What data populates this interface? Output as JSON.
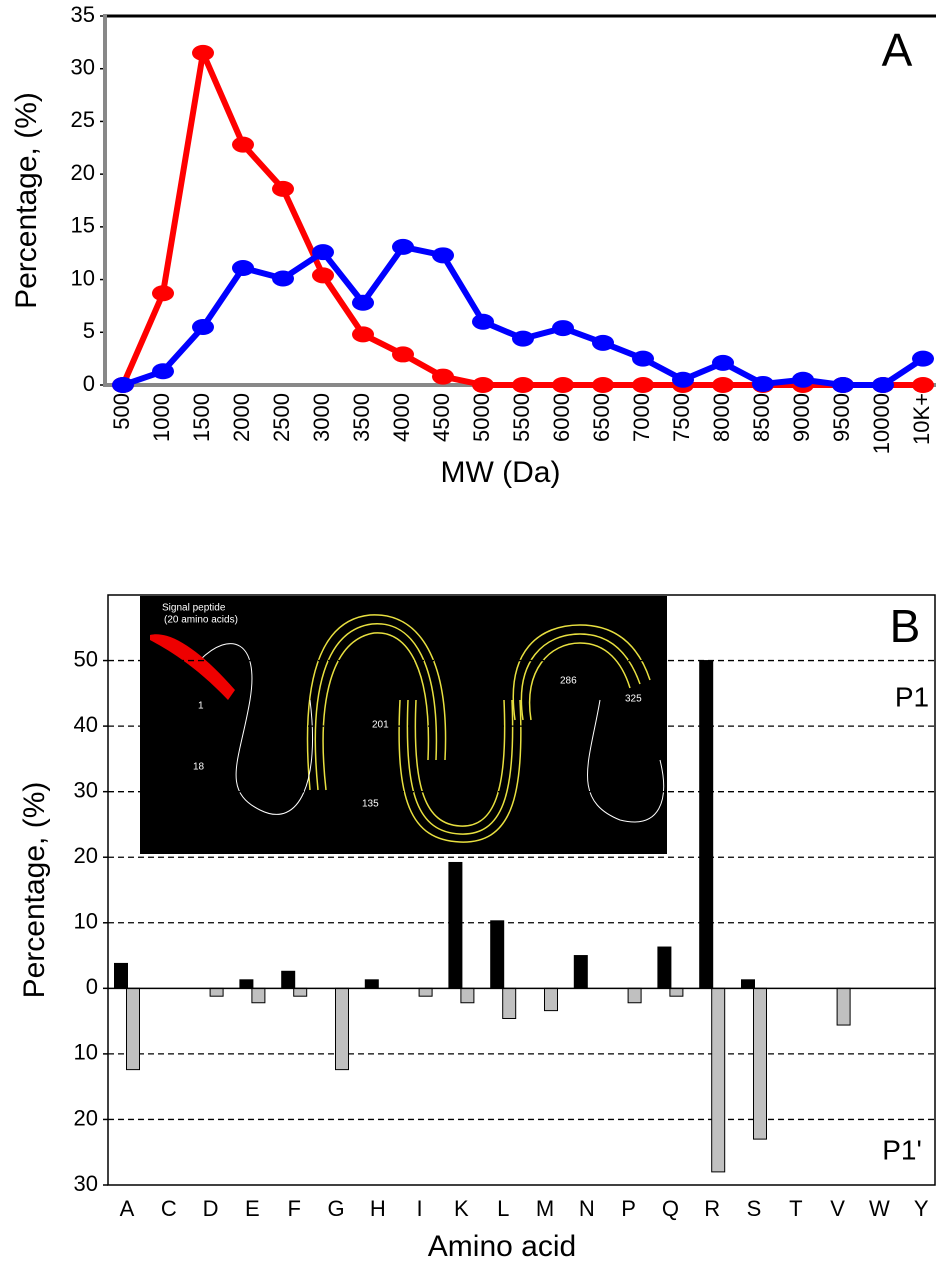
{
  "chart_data": [
    {
      "type": "line",
      "annotation": "A",
      "ylabel": "Percentage, (%)",
      "xlabel": "MW (Da)",
      "categories": [
        "500",
        "1000",
        "1500",
        "2000",
        "2500",
        "3000",
        "3500",
        "4000",
        "4500",
        "5000",
        "5500",
        "6000",
        "6500",
        "7000",
        "7500",
        "8000",
        "8500",
        "9000",
        "9500",
        "10000",
        "10K+"
      ],
      "series": [
        {
          "color": "#ff0000",
          "values": [
            0,
            8.7,
            31.5,
            22.8,
            18.6,
            10.4,
            4.8,
            2.9,
            0.8,
            0,
            0,
            0,
            0,
            0,
            0,
            0,
            0,
            0,
            0,
            0,
            0
          ]
        },
        {
          "color": "#0000ff",
          "values": [
            0,
            1.3,
            5.5,
            11.1,
            10.1,
            12.6,
            7.8,
            13.1,
            12.3,
            6,
            4.4,
            5.4,
            4,
            2.5,
            0.5,
            2.1,
            0.1,
            0.5,
            0,
            0,
            2.5
          ]
        }
      ],
      "ylim": [
        0,
        35
      ],
      "yticks": [
        0,
        5,
        10,
        15,
        20,
        25,
        30,
        35
      ]
    },
    {
      "type": "bar",
      "annotation": "B",
      "ylabel": "Percentage, (%)",
      "xlabel": "Amino acid",
      "categories": [
        "A",
        "C",
        "D",
        "E",
        "F",
        "G",
        "H",
        "I",
        "K",
        "L",
        "M",
        "N",
        "P",
        "Q",
        "R",
        "S",
        "T",
        "V",
        "W",
        "Y"
      ],
      "series": [
        {
          "name": "P1",
          "color": "#000000",
          "values": [
            3.8,
            0,
            0,
            1.3,
            2.6,
            0,
            1.3,
            0,
            19.2,
            10.3,
            0,
            5,
            0,
            6.3,
            50,
            1.3,
            0,
            0,
            0,
            0
          ]
        },
        {
          "name": "P1'",
          "color": "#c0c0c0",
          "values": [
            -12.4,
            0,
            -1.2,
            -2.2,
            -1.2,
            -12.4,
            0,
            -1.2,
            -2.2,
            -4.6,
            -3.4,
            0,
            -2.2,
            -1.2,
            -28,
            -23,
            0,
            -5.6,
            0,
            0
          ]
        }
      ],
      "ylim": [
        -30,
        60
      ],
      "yticks": [
        {
          "value": -30,
          "label": "30"
        },
        {
          "value": -20,
          "label": "20"
        },
        {
          "value": -10,
          "label": "10"
        },
        0,
        10,
        20,
        30,
        40,
        50
      ],
      "grid": true,
      "inset_labels": [
        "Signal peptide",
        "(20 amino acids)",
        "1",
        "18",
        "135",
        "201",
        "286",
        "325"
      ]
    }
  ]
}
